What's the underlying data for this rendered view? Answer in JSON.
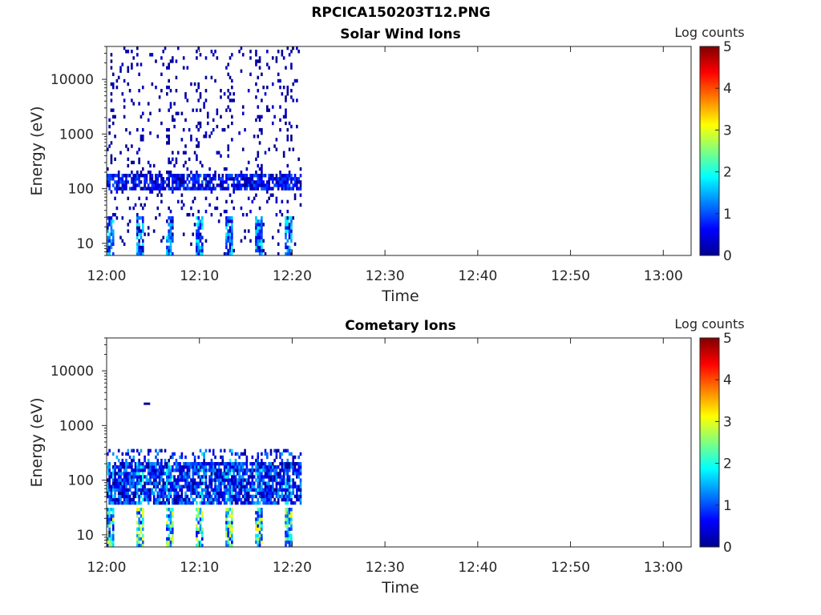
{
  "title": "RPCICA150203T12.PNG",
  "chart_data": [
    {
      "type": "heatmap",
      "title": "Solar Wind Ions",
      "xlabel": "Time",
      "ylabel": "Energy (eV)",
      "y_scale": "log",
      "ylim": [
        6,
        40000
      ],
      "xlim": [
        "12:00",
        "13:03"
      ],
      "x_ticks": [
        "12:00",
        "12:10",
        "12:20",
        "12:30",
        "12:40",
        "12:50",
        "13:00"
      ],
      "y_ticks": [
        "10",
        "100",
        "1000",
        "10000"
      ],
      "y_tick_values": [
        10,
        100,
        1000,
        10000
      ],
      "colorbar": {
        "label": "Log counts",
        "min": 0,
        "max": 5,
        "ticks": [
          "0",
          "1",
          "2",
          "3",
          "4",
          "5"
        ],
        "colormap": "jet"
      },
      "data_time_range": [
        "12:00",
        "12:21"
      ],
      "features": [
        {
          "description": "background band",
          "energy_eV": [
            90,
            190
          ],
          "log_counts": [
            0,
            1
          ]
        },
        {
          "description": "low-energy bursts every ~3.2 min",
          "energy_eV": [
            6,
            30
          ],
          "log_counts": [
            0,
            2
          ]
        },
        {
          "description": "sparse high-energy noise",
          "energy_eV": [
            200,
            40000
          ],
          "log_counts": [
            0,
            0.5
          ]
        }
      ]
    },
    {
      "type": "heatmap",
      "title": "Cometary Ions",
      "xlabel": "Time",
      "ylabel": "Energy (eV)",
      "y_scale": "log",
      "ylim": [
        6,
        40000
      ],
      "xlim": [
        "12:00",
        "13:03"
      ],
      "x_ticks": [
        "12:00",
        "12:10",
        "12:20",
        "12:30",
        "12:40",
        "12:50",
        "13:00"
      ],
      "y_ticks": [
        "10",
        "100",
        "1000",
        "10000"
      ],
      "y_tick_values": [
        10,
        100,
        1000,
        10000
      ],
      "colorbar": {
        "label": "Log counts",
        "min": 0,
        "max": 5,
        "ticks": [
          "0",
          "1",
          "2",
          "3",
          "4",
          "5"
        ],
        "colormap": "jet"
      },
      "data_time_range": [
        "12:00",
        "12:21"
      ],
      "features": [
        {
          "description": "broad band",
          "energy_eV": [
            35,
            350
          ],
          "log_counts": [
            0,
            2
          ]
        },
        {
          "description": "low-energy bursts every ~3.2 min",
          "energy_eV": [
            6,
            30
          ],
          "log_counts": [
            0,
            3
          ]
        },
        {
          "description": "isolated pixel",
          "time": "12:04",
          "energy_eV": 2500,
          "log_counts": 0
        }
      ]
    }
  ]
}
